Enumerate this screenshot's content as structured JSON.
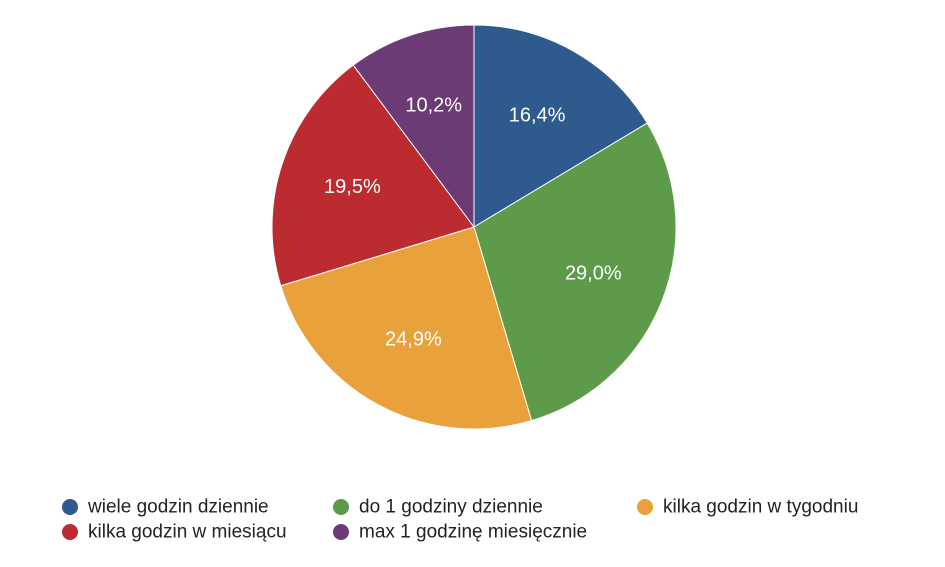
{
  "chart_data": {
    "type": "pie",
    "title": "",
    "legend_position": "bottom",
    "slices": [
      {
        "label": "wiele godzin dziennie",
        "value": 16.4,
        "display": "16,4%",
        "color": "#2e5a8e"
      },
      {
        "label": "do 1 godziny dziennie",
        "value": 29.0,
        "display": "29,0%",
        "color": "#5d9b4a"
      },
      {
        "label": "kilka godzin w tygodniu",
        "value": 24.9,
        "display": "24,9%",
        "color": "#e9a23b"
      },
      {
        "label": "kilka godzin w miesiącu",
        "value": 19.5,
        "display": "19,5%",
        "color": "#bb2b30"
      },
      {
        "label": "max 1 godzinę miesięcznie",
        "value": 10.2,
        "display": "10,2%",
        "color": "#6c3a75"
      }
    ]
  }
}
